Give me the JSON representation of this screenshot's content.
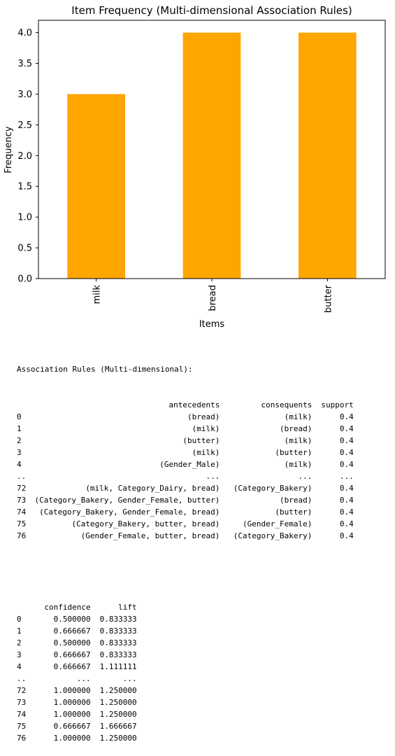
{
  "chart_data": {
    "type": "bar",
    "title": "Item Frequency (Multi-dimensional Association Rules)",
    "xlabel": "Items",
    "ylabel": "Frequency",
    "categories": [
      "milk",
      "bread",
      "butter"
    ],
    "values": [
      3.0,
      4.0,
      4.0
    ],
    "ylim": [
      0,
      4.2
    ],
    "yticks": [
      "0.0",
      "0.5",
      "1.0",
      "1.5",
      "2.0",
      "2.5",
      "3.0",
      "3.5",
      "4.0"
    ],
    "bar_color": "#ffa500",
    "grid": false,
    "legend": "none"
  },
  "output": {
    "heading": "Association Rules (Multi-dimensional):",
    "table1": {
      "columns": [
        "antecedents",
        "consequents",
        "support"
      ],
      "rows": [
        {
          "index": "0",
          "cells": [
            "(bread)",
            "(milk)",
            "0.4"
          ]
        },
        {
          "index": "1",
          "cells": [
            "(milk)",
            "(bread)",
            "0.4"
          ]
        },
        {
          "index": "2",
          "cells": [
            "(butter)",
            "(milk)",
            "0.4"
          ]
        },
        {
          "index": "3",
          "cells": [
            "(milk)",
            "(butter)",
            "0.4"
          ]
        },
        {
          "index": "4",
          "cells": [
            "(Gender_Male)",
            "(milk)",
            "0.4"
          ]
        },
        {
          "index": "..",
          "cells": [
            "...",
            "...",
            "..."
          ]
        },
        {
          "index": "72",
          "cells": [
            "(milk, Category_Dairy, bread)",
            "(Category_Bakery)",
            "0.4"
          ]
        },
        {
          "index": "73",
          "cells": [
            "(Category_Bakery, Gender_Female, butter)",
            "(bread)",
            "0.4"
          ]
        },
        {
          "index": "74",
          "cells": [
            "(Category_Bakery, Gender_Female, bread)",
            "(butter)",
            "0.4"
          ]
        },
        {
          "index": "75",
          "cells": [
            "(Category_Bakery, butter, bread)",
            "(Gender_Female)",
            "0.4"
          ]
        },
        {
          "index": "76",
          "cells": [
            "(Gender_Female, butter, bread)",
            "(Category_Bakery)",
            "0.4"
          ]
        }
      ]
    },
    "table2": {
      "columns": [
        "confidence",
        "lift"
      ],
      "rows": [
        {
          "index": "0",
          "cells": [
            "0.500000",
            "0.833333"
          ]
        },
        {
          "index": "1",
          "cells": [
            "0.666667",
            "0.833333"
          ]
        },
        {
          "index": "2",
          "cells": [
            "0.500000",
            "0.833333"
          ]
        },
        {
          "index": "3",
          "cells": [
            "0.666667",
            "0.833333"
          ]
        },
        {
          "index": "4",
          "cells": [
            "0.666667",
            "1.111111"
          ]
        },
        {
          "index": "..",
          "cells": [
            "...",
            "..."
          ]
        },
        {
          "index": "72",
          "cells": [
            "1.000000",
            "1.250000"
          ]
        },
        {
          "index": "73",
          "cells": [
            "1.000000",
            "1.250000"
          ]
        },
        {
          "index": "74",
          "cells": [
            "1.000000",
            "1.250000"
          ]
        },
        {
          "index": "75",
          "cells": [
            "0.666667",
            "1.666667"
          ]
        },
        {
          "index": "76",
          "cells": [
            "1.000000",
            "1.250000"
          ]
        }
      ]
    }
  }
}
